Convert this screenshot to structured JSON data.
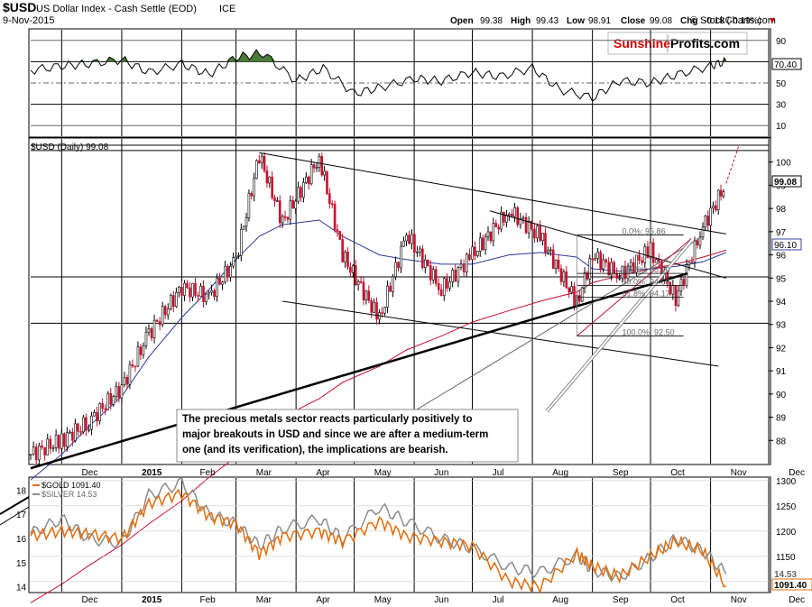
{
  "header": {
    "symbol": "$USD",
    "description": "US Dollar Index - Cash Settle (EOD)",
    "exchange": "ICE",
    "date": "9-Nov-2015",
    "copyright": "© StockCharts.com",
    "open_label": "Open",
    "open": "99.38",
    "high_label": "High",
    "high": "99.43",
    "low_label": "Low",
    "low": "98.91",
    "close_label": "Close",
    "close": "99.08",
    "chg_label": "Chg",
    "chg": "-0.18 (-0.19%)",
    "chg_marker": "▼"
  },
  "logo": {
    "part1": "Sunshine",
    "part2": "Profits.com",
    "color1": "#d40000",
    "color2": "#000000"
  },
  "annotation": {
    "line1": "The precious metals sector reacts particularly positively to",
    "line2": "major breakouts in USD and since we are after a medium-term",
    "line3": "one (and its verification), the implications are bearish."
  },
  "chart_data": [
    {
      "type": "line",
      "title": "RSI",
      "y_ticks": [
        "90",
        "70",
        "50",
        "30",
        "10"
      ],
      "ylim": [
        0,
        100
      ],
      "last_value_label": "70.40",
      "last_value": 70.4,
      "x_dates": [
        "2014-11-15",
        "2014-12-01",
        "2014-12-15",
        "2015-01-01",
        "2015-01-15",
        "2015-02-01",
        "2015-02-15",
        "2015-03-01",
        "2015-03-15",
        "2015-04-01",
        "2015-04-15",
        "2015-05-01",
        "2015-05-15",
        "2015-06-01",
        "2015-06-15",
        "2015-07-01",
        "2015-07-15",
        "2015-08-01",
        "2015-08-15",
        "2015-09-01",
        "2015-09-15",
        "2015-10-01",
        "2015-10-15",
        "2015-11-01",
        "2015-11-09"
      ],
      "values": [
        62,
        66,
        68,
        72,
        60,
        68,
        58,
        74,
        78,
        52,
        64,
        40,
        46,
        54,
        52,
        60,
        56,
        64,
        44,
        36,
        52,
        50,
        58,
        66,
        70.4
      ]
    },
    {
      "type": "line",
      "title": "$USD (Daily) 99.08",
      "series_name": "$USD (Daily) 99.08",
      "x_tick_labels": [
        "Dec",
        "2015",
        "Feb",
        "Mar",
        "Apr",
        "May",
        "Jun",
        "Jul",
        "Aug",
        "Sep",
        "Oct",
        "Nov",
        "Dec"
      ],
      "y_ticks": [
        "100",
        "99",
        "98",
        "97",
        "96",
        "95",
        "94",
        "93",
        "92",
        "91",
        "90",
        "89",
        "88"
      ],
      "ylim": [
        87,
        101
      ],
      "last_value_label": "99.08",
      "ma_value_label": "96.10",
      "fib_labels": [
        "0.0%: 96.86",
        "38.2%: 95.20",
        "50.0%: 94.68",
        "61.8%: 94.17",
        "100.0%: 92.50"
      ],
      "x_dates": [
        "2014-11-15",
        "2014-12-01",
        "2014-12-15",
        "2015-01-01",
        "2015-01-15",
        "2015-02-01",
        "2015-02-15",
        "2015-03-01",
        "2015-03-13",
        "2015-03-25",
        "2015-04-13",
        "2015-04-25",
        "2015-05-14",
        "2015-05-28",
        "2015-06-15",
        "2015-07-01",
        "2015-07-20",
        "2015-08-05",
        "2015-08-24",
        "2015-09-01",
        "2015-09-15",
        "2015-10-01",
        "2015-10-14",
        "2015-10-28",
        "2015-11-09"
      ],
      "values": [
        87.4,
        88.0,
        88.8,
        90.3,
        92.6,
        94.6,
        94.2,
        95.8,
        100.3,
        97.4,
        100.2,
        96.0,
        93.2,
        96.9,
        94.5,
        96.0,
        97.9,
        96.8,
        93.9,
        96.0,
        95.1,
        96.2,
        94.1,
        97.2,
        99.08
      ],
      "ma50": [
        86.3,
        87.4,
        88.6,
        89.9,
        91.6,
        93.3,
        94.5,
        95.8,
        96.8,
        97.3,
        97.5,
        96.8,
        96.0,
        95.8,
        95.6,
        95.6,
        96.0,
        96.1,
        95.9,
        95.4,
        95.3,
        95.4,
        95.5,
        95.7,
        96.1
      ],
      "ma200": [
        81.0,
        81.8,
        82.6,
        83.5,
        84.4,
        85.4,
        86.4,
        87.3,
        88.2,
        89.0,
        89.8,
        90.5,
        91.2,
        91.9,
        92.5,
        93.1,
        93.6,
        94.0,
        94.4,
        94.8,
        95.1,
        95.4,
        95.6,
        95.9,
        96.2
      ]
    },
    {
      "type": "line",
      "title": "Gold and Silver",
      "series": [
        {
          "name": "$GOLD 1091.40",
          "color": "#e36c0a",
          "values": [
            1190,
            1200,
            1195,
            1185,
            1255,
            1275,
            1230,
            1215,
            1155,
            1190,
            1200,
            1180,
            1220,
            1190,
            1180,
            1170,
            1100,
            1090,
            1155,
            1130,
            1110,
            1150,
            1180,
            1160,
            1091.4
          ]
        },
        {
          "name": "$SILVER 14.53",
          "color": "#8c8c8c",
          "values": [
            16.2,
            16.8,
            16.0,
            15.8,
            17.8,
            18.3,
            17.0,
            16.6,
            15.7,
            16.4,
            16.8,
            16.0,
            17.3,
            16.7,
            16.0,
            15.6,
            14.8,
            14.6,
            15.3,
            14.7,
            14.4,
            15.2,
            16.0,
            15.5,
            14.53
          ]
        }
      ],
      "y_left_ticks": [
        "18",
        "17",
        "16",
        "15",
        "14"
      ],
      "y_left_lim": [
        13.8,
        18.5
      ],
      "y_right_ticks": [
        "1300",
        "1250",
        "1200",
        "1150",
        "1100"
      ],
      "y_right_lim": [
        1080,
        1305
      ],
      "x_tick_labels": [
        "Dec",
        "2015",
        "Feb",
        "Mar",
        "Apr",
        "May",
        "Jun",
        "Jul",
        "Aug",
        "Sep",
        "Oct",
        "Nov",
        "Dec"
      ],
      "last_silver_label": "14.53",
      "last_gold_label": "1091.40"
    }
  ]
}
